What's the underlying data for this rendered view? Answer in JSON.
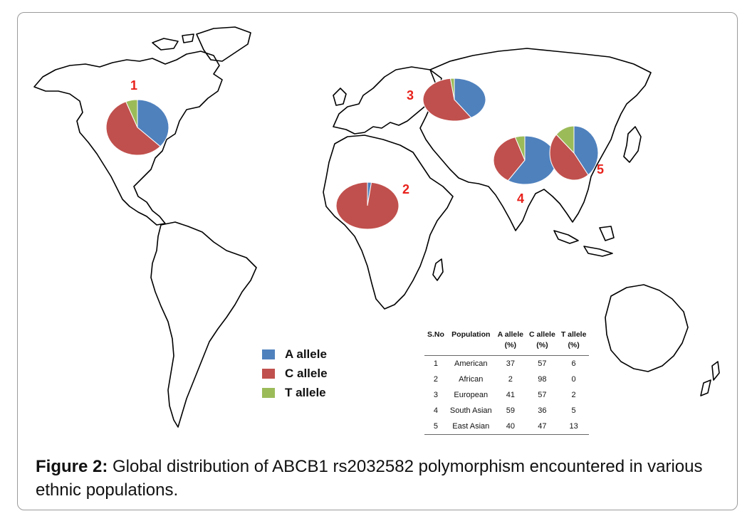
{
  "caption": {
    "label": "Figure 2:",
    "text": " Global distribution of ABCB1 rs2032582 polymorphism encountered in various ethnic populations."
  },
  "colors": {
    "a_allele": "#4f81bd",
    "c_allele": "#c0504d",
    "t_allele": "#9bbb59",
    "marker_label": "#e8211b"
  },
  "legend": [
    {
      "label": "A allele",
      "color": "#4f81bd"
    },
    {
      "label": "C allele",
      "color": "#c0504d"
    },
    {
      "label": "T allele",
      "color": "#9bbb59"
    }
  ],
  "table": {
    "headers": [
      "S.No",
      "Population",
      "A allele\n(%)",
      "C allele\n(%)",
      "T allele\n(%)"
    ],
    "rows": [
      [
        "1",
        "American",
        "37",
        "57",
        "6"
      ],
      [
        "2",
        "African",
        "2",
        "98",
        "0"
      ],
      [
        "3",
        "European",
        "41",
        "57",
        "2"
      ],
      [
        "4",
        "South Asian",
        "59",
        "36",
        "5"
      ],
      [
        "5",
        "East Asian",
        "40",
        "47",
        "13"
      ]
    ]
  },
  "pies": [
    {
      "id": "1",
      "population": "American",
      "region": "North America",
      "A": 37,
      "C": 57,
      "T": 6
    },
    {
      "id": "2",
      "population": "African",
      "region": "Africa",
      "A": 2,
      "C": 98,
      "T": 0
    },
    {
      "id": "3",
      "population": "European",
      "region": "Europe",
      "A": 41,
      "C": 57,
      "T": 2
    },
    {
      "id": "4",
      "population": "South Asian",
      "region": "South Asia",
      "A": 59,
      "C": 36,
      "T": 5
    },
    {
      "id": "5",
      "population": "East Asian",
      "region": "East Asia",
      "A": 40,
      "C": 47,
      "T": 13
    }
  ]
}
